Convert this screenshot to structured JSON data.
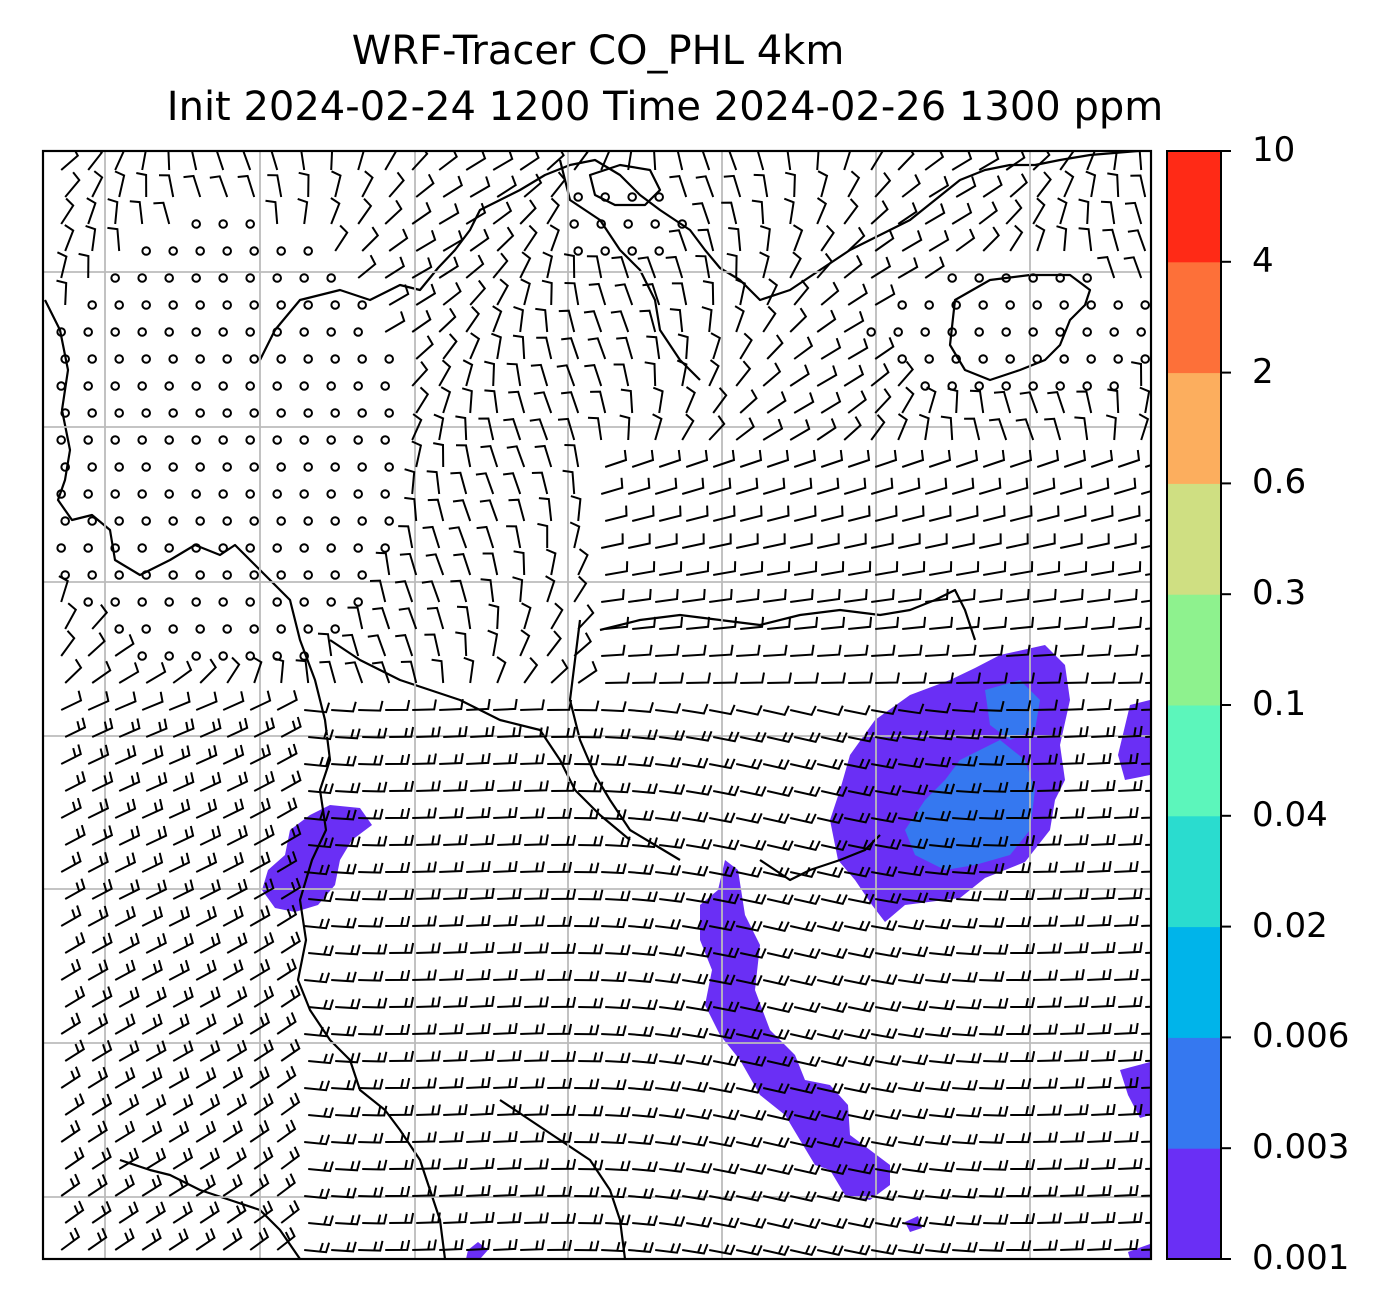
{
  "title": {
    "line1": "WRF-Tracer CO_PHL 4km",
    "line2": "Init 2024-02-24 1200 Time 2024-02-26 1300 ppm"
  },
  "colorbar": {
    "levels": [
      "0.001",
      "0.003",
      "0.006",
      "0.02",
      "0.04",
      "0.1",
      "0.3",
      "0.6",
      "2",
      "4",
      "10"
    ],
    "colors": [
      "#6a2ff5",
      "#3578f0",
      "#00b4ea",
      "#2adccf",
      "#5cf6bb",
      "#8ef28e",
      "#cfdf82",
      "#fcae5e",
      "#fd7039",
      "#ff2a16"
    ]
  },
  "colors": {
    "gridline": "#bbbbbb",
    "coastline": "#000000",
    "barb": "#000000"
  }
}
